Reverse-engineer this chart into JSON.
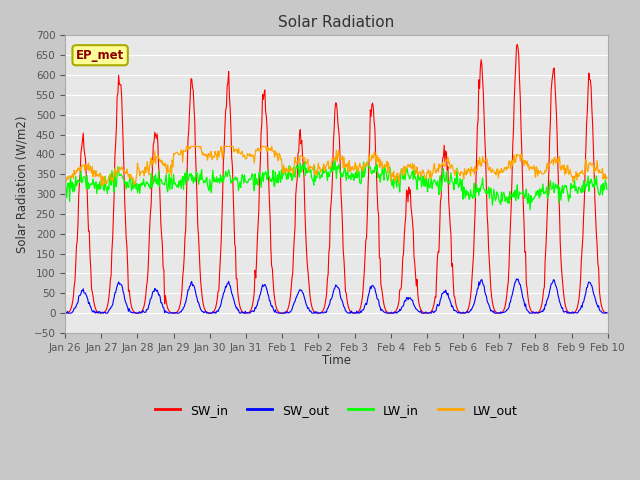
{
  "title": "Solar Radiation",
  "ylabel": "Solar Radiation (W/m2)",
  "xlabel": "Time",
  "ylim": [
    -50,
    700
  ],
  "yticks": [
    -50,
    0,
    50,
    100,
    150,
    200,
    250,
    300,
    350,
    400,
    450,
    500,
    550,
    600,
    650,
    700
  ],
  "xtick_labels": [
    "Jan 26",
    "Jan 27",
    "Jan 28",
    "Jan 29",
    "Jan 30",
    "Jan 31",
    "Feb 1",
    "Feb 2",
    "Feb 3",
    "Feb 4",
    "Feb 5",
    "Feb 6",
    "Feb 7",
    "Feb 8",
    "Feb 9",
    "Feb 10"
  ],
  "legend_labels": [
    "SW_in",
    "SW_out",
    "LW_in",
    "LW_out"
  ],
  "legend_colors": [
    "#ff0000",
    "#0000ff",
    "#00ff00",
    "#ffa500"
  ],
  "annotation_text": "EP_met",
  "annotation_color": "#8b0000",
  "annotation_bg": "#ffff99",
  "annotation_edge": "#aaaa00",
  "fig_bg": "#c8c8c8",
  "ax_bg": "#e8e8e8",
  "grid_color": "#ffffff",
  "n_days": 15,
  "dt_hours": 0.5,
  "peak_sw_in": [
    450,
    605,
    465,
    585,
    580,
    558,
    445,
    530,
    515,
    315,
    430,
    630,
    665,
    620,
    590
  ],
  "lw_in_adjustments": [
    0,
    10,
    5,
    15,
    15,
    20,
    30,
    30,
    30,
    20,
    10,
    -20,
    -30,
    -15,
    0
  ],
  "lw_out_base_vals": [
    345,
    335,
    360,
    400,
    400,
    395,
    360,
    365,
    365,
    345,
    350,
    355,
    365,
    355,
    345
  ]
}
